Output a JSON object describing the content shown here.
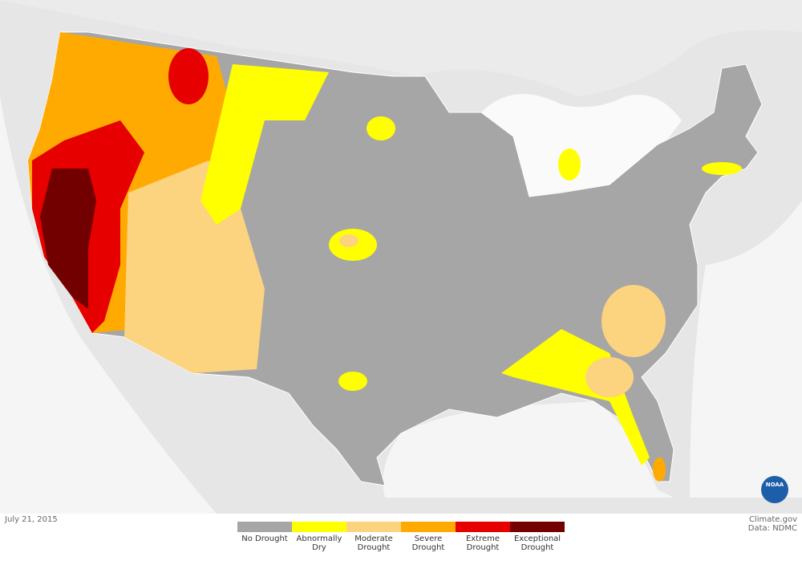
{
  "date": "July 21, 2015",
  "credit": {
    "source": "Climate.gov",
    "data": "Data: NDMC"
  },
  "logo": "NOAA",
  "legend": [
    {
      "label": "No Drought",
      "color": "#a6a6a6"
    },
    {
      "label": "Abnormally Dry",
      "color": "#ffff00"
    },
    {
      "label": "Moderate Drought",
      "color": "#fcd37f"
    },
    {
      "label": "Severe Drought",
      "color": "#ffaa00"
    },
    {
      "label": "Extreme Drought",
      "color": "#e60000"
    },
    {
      "label": "Exceptional Drought",
      "color": "#730000"
    }
  ]
}
